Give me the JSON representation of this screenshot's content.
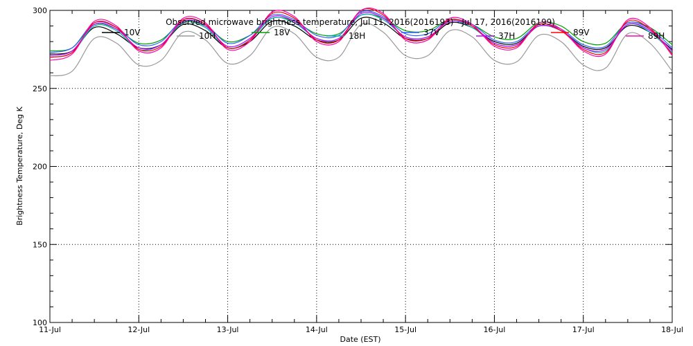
{
  "chart_data": {
    "type": "line",
    "title": "Observed microwave brightness temperature, Jul 11, 2016(2016193) - Jul 17, 2016(2016199)",
    "xlabel": "Date (EST)",
    "ylabel": "Brightness Temperature, Deg K",
    "ylim": [
      100,
      300
    ],
    "xlim": [
      "2016-07-11",
      "2016-07-18"
    ],
    "x_tick_labels": [
      "11-Jul",
      "12-Jul",
      "13-Jul",
      "14-Jul",
      "15-Jul",
      "16-Jul",
      "17-Jul",
      "18-Jul"
    ],
    "y_tick_labels": [
      "100",
      "150",
      "200",
      "250",
      "300"
    ],
    "grid": true,
    "legend_position": "top",
    "x": [
      "2016-07-11 00:00",
      "2016-07-11 06:00",
      "2016-07-11 12:00",
      "2016-07-11 18:00",
      "2016-07-12 00:00",
      "2016-07-12 06:00",
      "2016-07-12 12:00",
      "2016-07-12 18:00",
      "2016-07-13 00:00",
      "2016-07-13 06:00",
      "2016-07-13 12:00",
      "2016-07-13 18:00",
      "2016-07-14 00:00",
      "2016-07-14 06:00",
      "2016-07-14 12:00",
      "2016-07-14 18:00",
      "2016-07-15 00:00",
      "2016-07-15 06:00",
      "2016-07-15 12:00",
      "2016-07-15 18:00",
      "2016-07-16 00:00",
      "2016-07-16 06:00",
      "2016-07-16 12:00",
      "2016-07-16 18:00",
      "2016-07-17 00:00",
      "2016-07-17 06:00",
      "2016-07-17 12:00",
      "2016-07-17 18:00",
      "2016-07-18 00:00"
    ],
    "series": [
      {
        "name": "10V",
        "color": "#000000",
        "values": [
          272,
          274,
          289,
          285,
          276,
          278,
          291,
          287,
          276,
          280,
          293,
          290,
          281,
          281,
          295,
          292,
          282,
          282,
          292,
          289,
          280,
          279,
          290,
          287,
          277,
          276,
          290,
          286,
          275
        ]
      },
      {
        "name": "10H",
        "color": "#999999",
        "values": [
          258,
          261,
          282,
          279,
          265,
          268,
          286,
          281,
          266,
          271,
          289,
          285,
          270,
          270,
          291,
          286,
          271,
          271,
          287,
          283,
          268,
          267,
          284,
          280,
          265,
          263,
          285,
          279,
          261
        ]
      },
      {
        "name": "18V",
        "color": "#00a000",
        "values": [
          274,
          276,
          291,
          288,
          279,
          281,
          293,
          290,
          280,
          284,
          295,
          293,
          285,
          285,
          297,
          295,
          287,
          287,
          294,
          291,
          283,
          282,
          292,
          290,
          280,
          279,
          292,
          289,
          278
        ]
      },
      {
        "name": "18H",
        "color": "#00b0b0",
        "values": [
          270,
          273,
          290,
          287,
          275,
          278,
          292,
          289,
          276,
          281,
          295,
          292,
          282,
          282,
          297,
          294,
          283,
          283,
          293,
          289,
          279,
          278,
          290,
          287,
          276,
          274,
          291,
          286,
          273
        ]
      },
      {
        "name": "37V",
        "color": "#3060ff",
        "values": [
          273,
          276,
          292,
          289,
          278,
          280,
          294,
          291,
          279,
          284,
          297,
          294,
          284,
          284,
          299,
          296,
          285,
          285,
          294,
          291,
          281,
          280,
          291,
          288,
          278,
          277,
          292,
          288,
          276
        ]
      },
      {
        "name": "37H",
        "color": "#c000ff",
        "values": [
          271,
          274,
          291,
          288,
          276,
          278,
          293,
          290,
          277,
          282,
          296,
          293,
          282,
          282,
          298,
          295,
          283,
          283,
          293,
          290,
          279,
          278,
          290,
          287,
          276,
          275,
          291,
          287,
          274
        ]
      },
      {
        "name": "89V",
        "color": "#ff0000",
        "values": [
          270,
          273,
          292,
          289,
          275,
          277,
          294,
          291,
          276,
          281,
          298,
          295,
          281,
          281,
          300,
          297,
          282,
          282,
          294,
          290,
          278,
          277,
          291,
          287,
          275,
          273,
          293,
          288,
          272
        ]
      },
      {
        "name": "89H",
        "color": "#ff00aa",
        "values": [
          268,
          272,
          293,
          290,
          274,
          276,
          295,
          292,
          275,
          280,
          299,
          296,
          280,
          280,
          300,
          298,
          281,
          281,
          295,
          291,
          277,
          276,
          292,
          288,
          274,
          272,
          294,
          289,
          271
        ]
      }
    ]
  }
}
